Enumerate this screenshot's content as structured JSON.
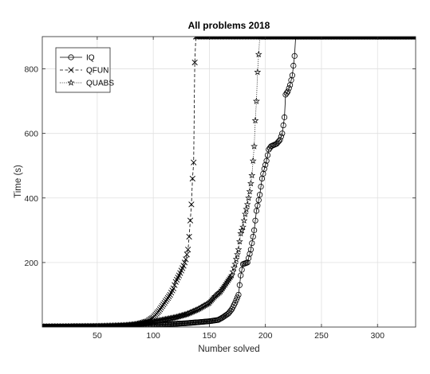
{
  "chart_data": {
    "type": "line",
    "title": "All problems 2018",
    "xlabel": "Number solved",
    "ylabel": "Time (s)",
    "xlim": [
      1,
      334
    ],
    "ylim": [
      0,
      900
    ],
    "xticks": [
      50,
      100,
      150,
      200,
      250,
      300
    ],
    "yticks": [
      200,
      400,
      600,
      800
    ],
    "grid": true,
    "legend_position": "top-left",
    "timeout": 900,
    "series": [
      {
        "name": "IQ",
        "marker": "o",
        "linestyle": "solid",
        "solved": 227,
        "points": [
          [
            1,
            1
          ],
          [
            30,
            1.5
          ],
          [
            60,
            2
          ],
          [
            80,
            4
          ],
          [
            90,
            5
          ],
          [
            100,
            6
          ],
          [
            110,
            8
          ],
          [
            120,
            10
          ],
          [
            130,
            12
          ],
          [
            140,
            15
          ],
          [
            150,
            18
          ],
          [
            158,
            22
          ],
          [
            162,
            30
          ],
          [
            167,
            42
          ],
          [
            170,
            55
          ],
          [
            173,
            75
          ],
          [
            176,
            100
          ],
          [
            178,
            160
          ],
          [
            180,
            195
          ],
          [
            184,
            200
          ],
          [
            187,
            240
          ],
          [
            190,
            300
          ],
          [
            192,
            360
          ],
          [
            195,
            410
          ],
          [
            197,
            460
          ],
          [
            199,
            490
          ],
          [
            201,
            515
          ],
          [
            203,
            550
          ],
          [
            205,
            560
          ],
          [
            210,
            568
          ],
          [
            213,
            580
          ],
          [
            215,
            600
          ],
          [
            217,
            650
          ],
          [
            218,
            720
          ],
          [
            220,
            730
          ],
          [
            222,
            750
          ],
          [
            224,
            780
          ],
          [
            226,
            840
          ],
          [
            227,
            900
          ]
        ]
      },
      {
        "name": "QFUN",
        "marker": "x",
        "linestyle": "dashed",
        "solved": 137,
        "points": [
          [
            1,
            1
          ],
          [
            40,
            1.5
          ],
          [
            70,
            3
          ],
          [
            85,
            8
          ],
          [
            95,
            18
          ],
          [
            100,
            30
          ],
          [
            105,
            50
          ],
          [
            110,
            75
          ],
          [
            115,
            100
          ],
          [
            118,
            120
          ],
          [
            120,
            140
          ],
          [
            123,
            160
          ],
          [
            125,
            175
          ],
          [
            127,
            190
          ],
          [
            129,
            210
          ],
          [
            131,
            240
          ],
          [
            132,
            280
          ],
          [
            133,
            330
          ],
          [
            134,
            380
          ],
          [
            135,
            460
          ],
          [
            136,
            510
          ],
          [
            137,
            820
          ],
          [
            138,
            900
          ]
        ]
      },
      {
        "name": "QUABS",
        "marker": "*",
        "linestyle": "dotted",
        "solved": 194,
        "points": [
          [
            1,
            1
          ],
          [
            50,
            2
          ],
          [
            75,
            5
          ],
          [
            90,
            10
          ],
          [
            100,
            16
          ],
          [
            110,
            23
          ],
          [
            120,
            30
          ],
          [
            130,
            40
          ],
          [
            140,
            55
          ],
          [
            150,
            75
          ],
          [
            155,
            95
          ],
          [
            160,
            110
          ],
          [
            165,
            135
          ],
          [
            170,
            160
          ],
          [
            173,
            195
          ],
          [
            176,
            240
          ],
          [
            178,
            290
          ],
          [
            180,
            310
          ],
          [
            182,
            350
          ],
          [
            184,
            380
          ],
          [
            186,
            420
          ],
          [
            188,
            470
          ],
          [
            190,
            560
          ],
          [
            191,
            640
          ],
          [
            192,
            700
          ],
          [
            193,
            790
          ],
          [
            194,
            845
          ],
          [
            195,
            900
          ]
        ]
      }
    ]
  }
}
